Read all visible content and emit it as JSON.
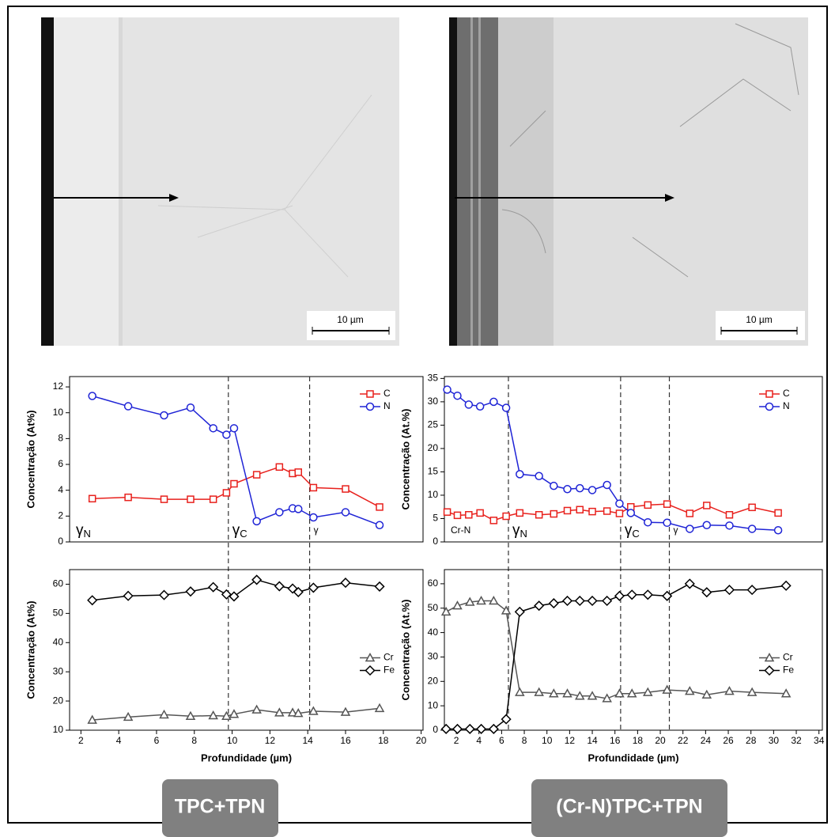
{
  "panels": [
    {
      "label": "TPC+TPN",
      "scale_bar": "10 µm"
    },
    {
      "label": "(Cr-N)TPC+TPN",
      "scale_bar": "10 µm"
    }
  ],
  "chart_data": [
    {
      "type": "line",
      "ylabel": "Concentração (At%)",
      "x": [
        2.6,
        4.5,
        6.4,
        7.8,
        9.0,
        9.7,
        10.1,
        11.3,
        12.5,
        13.2,
        13.5,
        14.3,
        16.0,
        17.8
      ],
      "series": [
        {
          "name": "C",
          "color": "#e8211d",
          "marker": "square",
          "values": [
            3.35,
            3.45,
            3.3,
            3.3,
            3.3,
            3.8,
            4.5,
            5.2,
            5.8,
            5.3,
            5.4,
            4.2,
            4.1,
            2.7
          ]
        },
        {
          "name": "N",
          "color": "#1f24d6",
          "marker": "circle",
          "values": [
            11.3,
            10.5,
            9.8,
            10.4,
            8.8,
            8.3,
            8.8,
            1.6,
            2.3,
            2.6,
            2.55,
            1.9,
            2.3,
            1.3
          ]
        }
      ],
      "xlim": [
        1.4,
        20.1
      ],
      "ylim": [
        0,
        12.8
      ],
      "yticks": [
        0,
        2,
        4,
        6,
        8,
        10,
        12
      ],
      "legend": "upper right",
      "boundaries": [
        9.8,
        14.1
      ],
      "region_labels": [
        {
          "symbol": "γ",
          "sub": "N"
        },
        {
          "symbol": "γ",
          "sub": "C"
        },
        {
          "symbol": "γ"
        }
      ]
    },
    {
      "type": "line",
      "ylabel": "Concentração (At%)",
      "xlabel": "Profundidade (µm)",
      "x": [
        2.6,
        4.5,
        6.4,
        7.8,
        9.0,
        9.7,
        10.1,
        11.3,
        12.5,
        13.2,
        13.5,
        14.3,
        16.0,
        17.8
      ],
      "series": [
        {
          "name": "Cr",
          "color": "#555555",
          "marker": "triangle",
          "values": [
            13.5,
            14.5,
            15.3,
            14.8,
            15.0,
            14.8,
            15.5,
            17.0,
            16.0,
            16.0,
            15.8,
            16.5,
            16.2,
            17.5
          ]
        },
        {
          "name": "Fe",
          "color": "#000000",
          "marker": "diamond",
          "values": [
            54.5,
            56.0,
            56.3,
            57.5,
            59.0,
            56.5,
            55.8,
            61.5,
            59.3,
            58.5,
            57.3,
            58.8,
            60.5,
            59.2
          ]
        }
      ],
      "xlim": [
        1.4,
        20.1
      ],
      "ylim": [
        10,
        65
      ],
      "xticks": [
        2,
        4,
        6,
        8,
        10,
        12,
        14,
        16,
        18,
        20
      ],
      "yticks": [
        10,
        20,
        30,
        40,
        50,
        60
      ],
      "legend": "center right"
    },
    {
      "type": "line",
      "ylabel": "Concentração (At.%)",
      "x": [
        1.2,
        2.1,
        3.1,
        4.1,
        5.3,
        6.4,
        7.6,
        9.3,
        10.6,
        11.8,
        12.9,
        14.0,
        15.3,
        16.4,
        17.4,
        18.9,
        20.6,
        22.6,
        24.1,
        26.1,
        28.1,
        30.4
      ],
      "series": [
        {
          "name": "C",
          "color": "#e8211d",
          "marker": "square",
          "values": [
            6.4,
            5.7,
            5.8,
            6.2,
            4.6,
            5.5,
            6.2,
            5.8,
            6.0,
            6.7,
            6.9,
            6.5,
            6.6,
            6.1,
            7.5,
            7.9,
            8.1,
            6.1,
            7.8,
            5.8,
            7.4,
            6.2
          ]
        },
        {
          "name": "N",
          "color": "#1f24d6",
          "marker": "circle",
          "values": [
            32.6,
            31.3,
            29.4,
            29.0,
            30.0,
            28.7,
            14.5,
            14.1,
            12.0,
            11.3,
            11.5,
            11.1,
            12.2,
            8.2,
            6.2,
            4.2,
            4.1,
            2.8,
            3.6,
            3.5,
            2.8,
            2.5
          ]
        }
      ],
      "xlim": [
        0.95,
        34.3
      ],
      "ylim": [
        0,
        35.4
      ],
      "yticks": [
        0,
        5,
        10,
        15,
        20,
        25,
        30,
        35
      ],
      "legend": "upper right",
      "boundaries": [
        6.6,
        16.5,
        20.8
      ],
      "region_labels": [
        {
          "symbol": "Cr-N"
        },
        {
          "symbol": "γ",
          "sub": "N"
        },
        {
          "symbol": "γ",
          "sub": "C"
        },
        {
          "symbol": "γ"
        }
      ]
    },
    {
      "type": "line",
      "ylabel": "Concentração (At.%)",
      "xlabel": "Profundidade (µm)",
      "x": [
        1.1,
        2.1,
        3.2,
        4.2,
        5.3,
        6.4,
        7.6,
        9.3,
        10.6,
        11.8,
        12.9,
        14.0,
        15.3,
        16.4,
        17.5,
        18.9,
        20.6,
        22.6,
        24.1,
        26.1,
        28.1,
        31.1
      ],
      "series": [
        {
          "name": "Cr",
          "color": "#555555",
          "marker": "triangle",
          "values": [
            48.5,
            51,
            52.5,
            53,
            53,
            49,
            15.5,
            15.5,
            15,
            15,
            14,
            14,
            13,
            15,
            15,
            15.5,
            16.5,
            16,
            14.5,
            16,
            15.5,
            15
          ]
        },
        {
          "name": "Fe",
          "color": "#000000",
          "marker": "diamond",
          "values": [
            0.5,
            0.5,
            0.5,
            0.5,
            0.5,
            4.5,
            48.5,
            51,
            52,
            53,
            53,
            53,
            53,
            55,
            55.5,
            55.5,
            55,
            60,
            56.5,
            57.5,
            57.5,
            59.2
          ]
        }
      ],
      "xlim": [
        0.95,
        34.3
      ],
      "ylim": [
        0,
        65.8
      ],
      "xticks": [
        2,
        4,
        6,
        8,
        10,
        12,
        14,
        16,
        18,
        20,
        22,
        24,
        26,
        28,
        30,
        32,
        34
      ],
      "yticks": [
        0,
        10,
        20,
        30,
        40,
        50,
        60
      ],
      "legend": "center right"
    }
  ]
}
